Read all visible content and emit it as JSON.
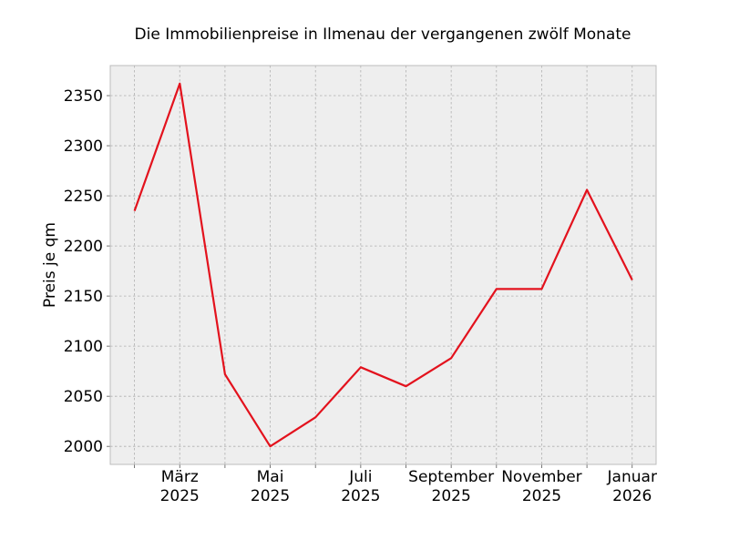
{
  "chart_data": {
    "type": "line",
    "title": "Die Immobilienpreise in Ilmenau der vergangenen zwölf Monate",
    "xlabel": "",
    "ylabel": "Preis je qm",
    "x": [
      "2025-02",
      "2025-03",
      "2025-04",
      "2025-05",
      "2025-06",
      "2025-07",
      "2025-08",
      "2025-09",
      "2025-10",
      "2025-11",
      "2025-12",
      "2026-01"
    ],
    "series": [
      {
        "values": [
          2235,
          2362,
          2072,
          2000,
          2029,
          2079,
          2060,
          2088,
          2157,
          2157,
          2256,
          2166
        ]
      }
    ],
    "x_ticks": [
      {
        "pos": 1,
        "line1": "März",
        "line2": "2025"
      },
      {
        "pos": 3,
        "line1": "Mai",
        "line2": "2025"
      },
      {
        "pos": 5,
        "line1": "Juli",
        "line2": "2025"
      },
      {
        "pos": 7,
        "line1": "September",
        "line2": "2025"
      },
      {
        "pos": 9,
        "line1": "November",
        "line2": "2025"
      },
      {
        "pos": 11,
        "line1": "Januar",
        "line2": "2026"
      }
    ],
    "y_ticks": [
      "2000",
      "2050",
      "2100",
      "2150",
      "2200",
      "2250",
      "2300",
      "2350"
    ],
    "ylim": [
      1982,
      2380
    ],
    "grid": true,
    "colors": {
      "line": "#e3121d",
      "plot_bg": "#eeeeee",
      "grid": "#b0b0b0",
      "frame": "#bcbcbc"
    }
  }
}
